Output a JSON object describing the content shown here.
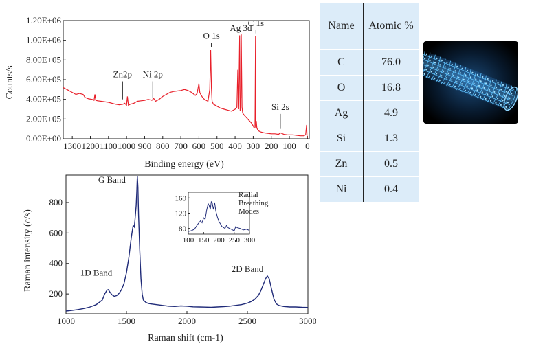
{
  "table": {
    "headers": [
      "Name",
      "Atomic %"
    ],
    "rows": [
      [
        "C",
        "76.0"
      ],
      [
        "O",
        "16.8"
      ],
      [
        "Ag",
        "4.9"
      ],
      [
        "Si",
        "1.3"
      ],
      [
        "Zn",
        "0.5"
      ],
      [
        "Ni",
        "0.4"
      ]
    ]
  },
  "image": {
    "icon": "carbon-nanotube-illustration"
  },
  "colors": {
    "xps_line": "#e8202a",
    "raman_line": "#1f2a78",
    "table_bg": "#dcecf9"
  },
  "chart_data": [
    {
      "type": "line",
      "xlabel": "Binding energy (eV)",
      "ylabel": "Counts/s",
      "xlim": [
        1350,
        -10
      ],
      "xreversed": true,
      "ylim": [
        0,
        1200000
      ],
      "xticks": [
        1300,
        1200,
        1100,
        1000,
        900,
        800,
        700,
        600,
        500,
        400,
        300,
        200,
        100,
        0
      ],
      "yticks": [
        "0.00E+00",
        "2.00E+05",
        "4.00E+05",
        "6.00E+05",
        "8.00E+05",
        "1.00E+06",
        "1.20E+06"
      ],
      "series": [
        {
          "x": [
            1350,
            1330,
            1300,
            1280,
            1260,
            1240,
            1230,
            1210,
            1190,
            1180,
            1175,
            1170,
            1160,
            1140,
            1100,
            1080,
            1060,
            1040,
            1020,
            1010,
            1000,
            995,
            990,
            980,
            960,
            940,
            920,
            900,
            880,
            860,
            850,
            840,
            820,
            800,
            780,
            760,
            740,
            720,
            700,
            680,
            660,
            640,
            620,
            610,
            600,
            595,
            590,
            580,
            570,
            560,
            550,
            540,
            535,
            531,
            527,
            520,
            500,
            480,
            460,
            440,
            420,
            400,
            390,
            385,
            380,
            375,
            372,
            368,
            366,
            362,
            358,
            354,
            350,
            340,
            330,
            320,
            310,
            300,
            295,
            290,
            287,
            285,
            283,
            280,
            275,
            270,
            260,
            240,
            220,
            200,
            180,
            160,
            150,
            130,
            110,
            100,
            80,
            60,
            40,
            20,
            10,
            5,
            2,
            0
          ],
          "y": [
            520000,
            500000,
            470000,
            450000,
            460000,
            450000,
            420000,
            405000,
            400000,
            390000,
            450000,
            390000,
            385000,
            380000,
            370000,
            360000,
            350000,
            345000,
            350000,
            360000,
            340000,
            430000,
            340000,
            350000,
            360000,
            380000,
            385000,
            390000,
            400000,
            390000,
            410000,
            380000,
            400000,
            430000,
            450000,
            470000,
            480000,
            485000,
            490000,
            500000,
            490000,
            470000,
            440000,
            460000,
            560000,
            470000,
            450000,
            420000,
            400000,
            390000,
            380000,
            500000,
            900000,
            520000,
            380000,
            350000,
            330000,
            310000,
            300000,
            290000,
            280000,
            300000,
            320000,
            700000,
            300000,
            1050000,
            280000,
            420000,
            1060000,
            320000,
            260000,
            250000,
            240000,
            220000,
            200000,
            180000,
            160000,
            130000,
            110000,
            110000,
            1040000,
            120000,
            180000,
            110000,
            90000,
            80000,
            70000,
            60000,
            55000,
            50000,
            50000,
            45000,
            60000,
            45000,
            40000,
            40000,
            40000,
            35000,
            30000,
            30000,
            40000,
            140000,
            20000,
            10000
          ]
        }
      ],
      "annotations": [
        {
          "text": "Zn2p",
          "x": 1022,
          "y": 400000,
          "label_y": 610000
        },
        {
          "text": "Ni 2p",
          "x": 855,
          "y": 410000,
          "label_y": 610000
        },
        {
          "text": "O 1s",
          "x": 531,
          "y": 930000,
          "label_y": 1000000
        },
        {
          "text": "Ag 3d",
          "x": 368,
          "y": 1080000,
          "label_y": 1080000
        },
        {
          "text": "C 1s",
          "x": 285,
          "y": 1070000,
          "label_y": 1130000
        },
        {
          "text": "Si 2s",
          "x": 150,
          "y": 100000,
          "label_y": 280000
        }
      ]
    },
    {
      "type": "line",
      "xlabel": "Raman shift (cm-1)",
      "ylabel": "Raman intensity (c/s)",
      "xlim": [
        1000,
        3000
      ],
      "ylim": [
        70,
        980
      ],
      "xticks": [
        1000,
        1500,
        2000,
        2500,
        3000
      ],
      "yticks": [
        200,
        400,
        600,
        800
      ],
      "series": [
        {
          "x": [
            1000,
            1050,
            1100,
            1150,
            1200,
            1250,
            1300,
            1320,
            1340,
            1350,
            1360,
            1380,
            1400,
            1420,
            1440,
            1460,
            1480,
            1500,
            1520,
            1540,
            1555,
            1565,
            1570,
            1580,
            1585,
            1590,
            1595,
            1600,
            1610,
            1620,
            1630,
            1640,
            1660,
            1680,
            1700,
            1750,
            1800,
            1850,
            1900,
            1950,
            2000,
            2050,
            2100,
            2150,
            2200,
            2250,
            2300,
            2350,
            2400,
            2450,
            2500,
            2530,
            2560,
            2590,
            2610,
            2630,
            2650,
            2665,
            2680,
            2700,
            2720,
            2740,
            2760,
            2800,
            2850,
            2900,
            2950,
            3000
          ],
          "y": [
            88,
            92,
            98,
            105,
            115,
            130,
            160,
            200,
            225,
            228,
            215,
            195,
            185,
            190,
            205,
            230,
            270,
            340,
            440,
            570,
            650,
            640,
            680,
            780,
            870,
            975,
            900,
            720,
            480,
            300,
            200,
            160,
            145,
            138,
            135,
            130,
            125,
            120,
            118,
            122,
            120,
            116,
            115,
            114,
            113,
            115,
            117,
            120,
            125,
            130,
            140,
            150,
            165,
            190,
            220,
            260,
            300,
            318,
            300,
            230,
            165,
            135,
            125,
            118,
            115,
            115,
            113,
            112
          ]
        }
      ],
      "annotations": [
        {
          "text": "G Band",
          "x": 1380,
          "y": 930
        },
        {
          "text": "1D Band",
          "x": 1250,
          "y": 320
        },
        {
          "text": "2D Band",
          "x": 2500,
          "y": 345
        }
      ]
    },
    {
      "type": "line",
      "title": "Radial Breathing Modes",
      "xlim": [
        100,
        300
      ],
      "ylim": [
        65,
        175
      ],
      "xticks": [
        100,
        150,
        200,
        250,
        300
      ],
      "yticks": [
        80,
        120,
        160
      ],
      "series": [
        {
          "x": [
            100,
            110,
            120,
            130,
            140,
            145,
            150,
            155,
            160,
            165,
            168,
            172,
            175,
            178,
            182,
            186,
            190,
            195,
            200,
            205,
            210,
            220,
            225,
            230,
            240,
            250,
            255,
            260,
            270,
            280,
            290,
            300
          ],
          "y": [
            72,
            74,
            78,
            90,
            100,
            95,
            108,
            104,
            128,
            145,
            140,
            130,
            150,
            148,
            130,
            148,
            125,
            110,
            98,
            92,
            85,
            80,
            88,
            82,
            78,
            74,
            85,
            82,
            80,
            76,
            78,
            75
          ]
        }
      ]
    }
  ]
}
